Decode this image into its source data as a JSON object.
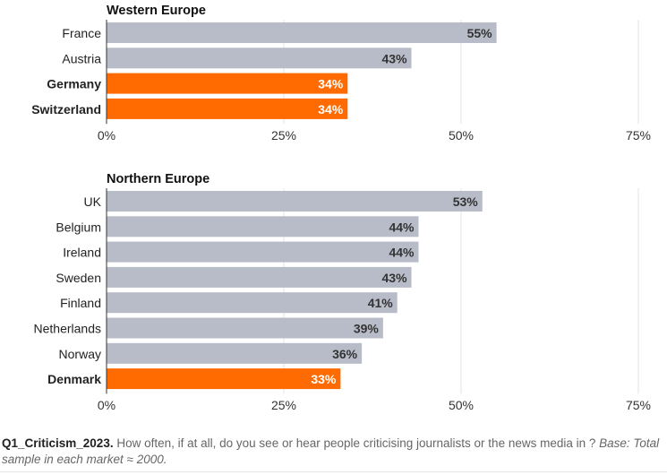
{
  "chart_data": [
    {
      "type": "bar",
      "orientation": "horizontal",
      "title": "Western Europe",
      "categories": [
        "France",
        "Austria",
        "Germany",
        "Switzerland"
      ],
      "values": [
        55,
        43,
        34,
        34
      ],
      "data_labels": [
        "55%",
        "43%",
        "34%",
        "34%"
      ],
      "highlighted": [
        false,
        false,
        true,
        true
      ],
      "xlim": [
        0,
        75
      ],
      "xticks": [
        "0%",
        "25%",
        "50%",
        "75%"
      ],
      "grid": true
    },
    {
      "type": "bar",
      "orientation": "horizontal",
      "title": "Northern Europe",
      "categories": [
        "UK",
        "Belgium",
        "Ireland",
        "Sweden",
        "Finland",
        "Netherlands",
        "Norway",
        "Denmark"
      ],
      "values": [
        53,
        44,
        44,
        43,
        41,
        39,
        36,
        33
      ],
      "data_labels": [
        "53%",
        "44%",
        "44%",
        "43%",
        "41%",
        "39%",
        "36%",
        "33%"
      ],
      "highlighted": [
        false,
        false,
        false,
        false,
        false,
        false,
        false,
        true
      ],
      "xlim": [
        0,
        75
      ],
      "xticks": [
        "0%",
        "25%",
        "50%",
        "75%"
      ],
      "grid": true
    }
  ],
  "colors": {
    "default_bar": "#b8bcc8",
    "highlight_bar": "#ff6b00",
    "label_dark": "#333333",
    "label_light": "#ffffff"
  },
  "footer": {
    "question_id": "Q1_Criticism_2023.",
    "question": " How often, if at all, do you see or hear people criticising journalists or the news media in ? ",
    "base": "Base: Total sample in each market ≈ 2000."
  }
}
